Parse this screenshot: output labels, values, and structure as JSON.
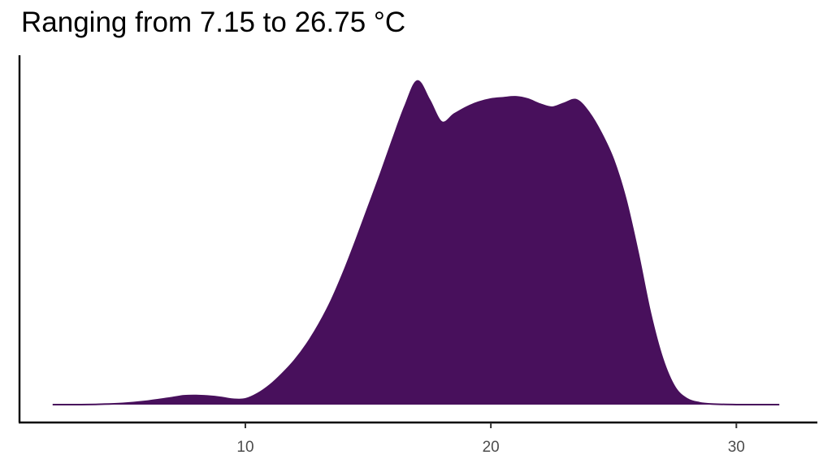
{
  "chart_data": {
    "type": "area",
    "title": "Ranging from 7.15 to 26.75 °C",
    "xlabel": "",
    "ylabel": "",
    "xlim": [
      0.8,
      33.3
    ],
    "ylim": [
      0,
      0.105
    ],
    "x_ticks": [
      10,
      20,
      30
    ],
    "x_tick_labels": [
      "10",
      "20",
      "30"
    ],
    "grid": false,
    "legend": "none",
    "fill_color": "#48105c",
    "series": [
      {
        "x": [
          2.15,
          3,
          4,
          5,
          6,
          7,
          7.5,
          8,
          8.5,
          9,
          9.5,
          10,
          10.5,
          11,
          11.5,
          12,
          12.5,
          13,
          13.5,
          14,
          14.5,
          15,
          15.5,
          16,
          16.5,
          17,
          17.5,
          18,
          18.5,
          19,
          19.5,
          20,
          20.5,
          21,
          21.5,
          22,
          22.5,
          23,
          23.5,
          24,
          24.5,
          25,
          25.5,
          26,
          26.5,
          27,
          27.5,
          28,
          28.5,
          29,
          30,
          31,
          31.75
        ],
        "y": [
          0,
          0,
          0.0001,
          0.0004,
          0.0011,
          0.0022,
          0.0028,
          0.0029,
          0.0027,
          0.0023,
          0.0017,
          0.0018,
          0.0035,
          0.0062,
          0.0098,
          0.014,
          0.0192,
          0.0255,
          0.033,
          0.042,
          0.052,
          0.0625,
          0.073,
          0.084,
          0.0945,
          0.1025,
          0.0965,
          0.0895,
          0.092,
          0.0942,
          0.0958,
          0.0968,
          0.0972,
          0.0975,
          0.0968,
          0.0952,
          0.0942,
          0.0955,
          0.0965,
          0.0925,
          0.086,
          0.0775,
          0.065,
          0.048,
          0.029,
          0.0145,
          0.0055,
          0.0018,
          0.0006,
          0.0002,
          0,
          0,
          0
        ]
      }
    ]
  }
}
